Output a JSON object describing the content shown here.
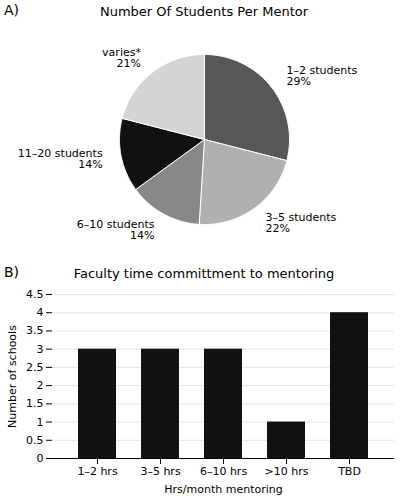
{
  "chart_data": [
    {
      "type": "pie",
      "title": "Number Of Students Per Mentor",
      "annotations": [
        "A)"
      ],
      "categories": [
        "1–2 students",
        "3–5 students",
        "6–10 students",
        "11–20 students",
        "varies*"
      ],
      "values": [
        29,
        22,
        14,
        14,
        21
      ],
      "value_labels": [
        "29%",
        "22%",
        "14%",
        "14%",
        "21%"
      ],
      "colors": [
        "#575757",
        "#b0b0b0",
        "#888888",
        "#111111",
        "#d4d4d4"
      ],
      "data_labels": true
    },
    {
      "type": "bar",
      "title": "Faculty time committment to mentoring",
      "annotations": [
        "B)"
      ],
      "categories": [
        "1–2 hrs",
        "3–5 hrs",
        "6–10 hrs",
        ">10 hrs",
        "TBD"
      ],
      "values": [
        3,
        3,
        3,
        1,
        4
      ],
      "color": "#111111",
      "xlabel": "Hrs/month mentoring",
      "ylabel": "Number of schools",
      "ylim": [
        0,
        4.5
      ],
      "yticks": [
        0,
        0.5,
        1,
        1.5,
        2,
        2.5,
        3,
        3.5,
        4,
        4.5
      ],
      "grid": true
    }
  ]
}
